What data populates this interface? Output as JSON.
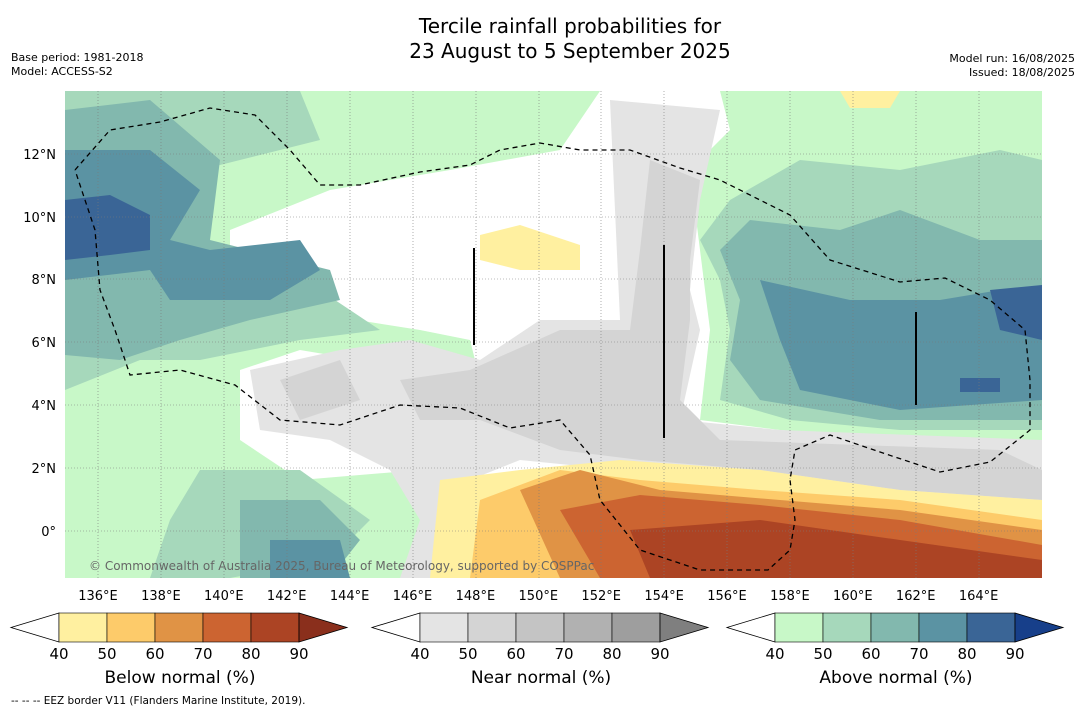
{
  "header": {
    "title_line1": "Tercile rainfall probabilities for",
    "title_line2": "23 August to 5 September 2025",
    "base_period": "Base period: 1981-2018",
    "model": "Model: ACCESS-S2",
    "model_run": "Model run: 16/08/2025",
    "issued": "Issued: 18/08/2025"
  },
  "map": {
    "lon_ticks": [
      "136°E",
      "138°E",
      "140°E",
      "142°E",
      "144°E",
      "146°E",
      "148°E",
      "150°E",
      "152°E",
      "154°E",
      "156°E",
      "158°E",
      "160°E",
      "162°E",
      "164°E"
    ],
    "lat_ticks": [
      "12°N",
      "10°N",
      "8°N",
      "6°N",
      "4°N",
      "2°N",
      "0°"
    ],
    "copyright": "© Commonwealth of Australia 2025, Bureau of Meteorology, supported by COSPPac"
  },
  "colorbars": [
    {
      "label": "Below normal (%)",
      "ticks": [
        "40",
        "50",
        "60",
        "70",
        "80",
        "90"
      ],
      "colors": [
        "#fff0a0",
        "#fdcb6a",
        "#e09345",
        "#cc6431",
        "#ac4424",
        "#8a2f1c"
      ]
    },
    {
      "label": "Near normal (%)",
      "ticks": [
        "40",
        "50",
        "60",
        "70",
        "80",
        "90"
      ],
      "colors": [
        "#e4e4e4",
        "#d4d4d4",
        "#c4c4c4",
        "#b1b1b1",
        "#9e9e9e",
        "#7f7f7f"
      ]
    },
    {
      "label": "Above normal (%)",
      "ticks": [
        "40",
        "50",
        "60",
        "70",
        "80",
        "90"
      ],
      "colors": [
        "#c8f8c8",
        "#a6d8bb",
        "#82b8ae",
        "#5b93a3",
        "#3a6596",
        "#173f8a"
      ]
    }
  ],
  "footnote": "--  --  -- EEZ border V11 (Flanders Marine Institute, 2019)."
}
